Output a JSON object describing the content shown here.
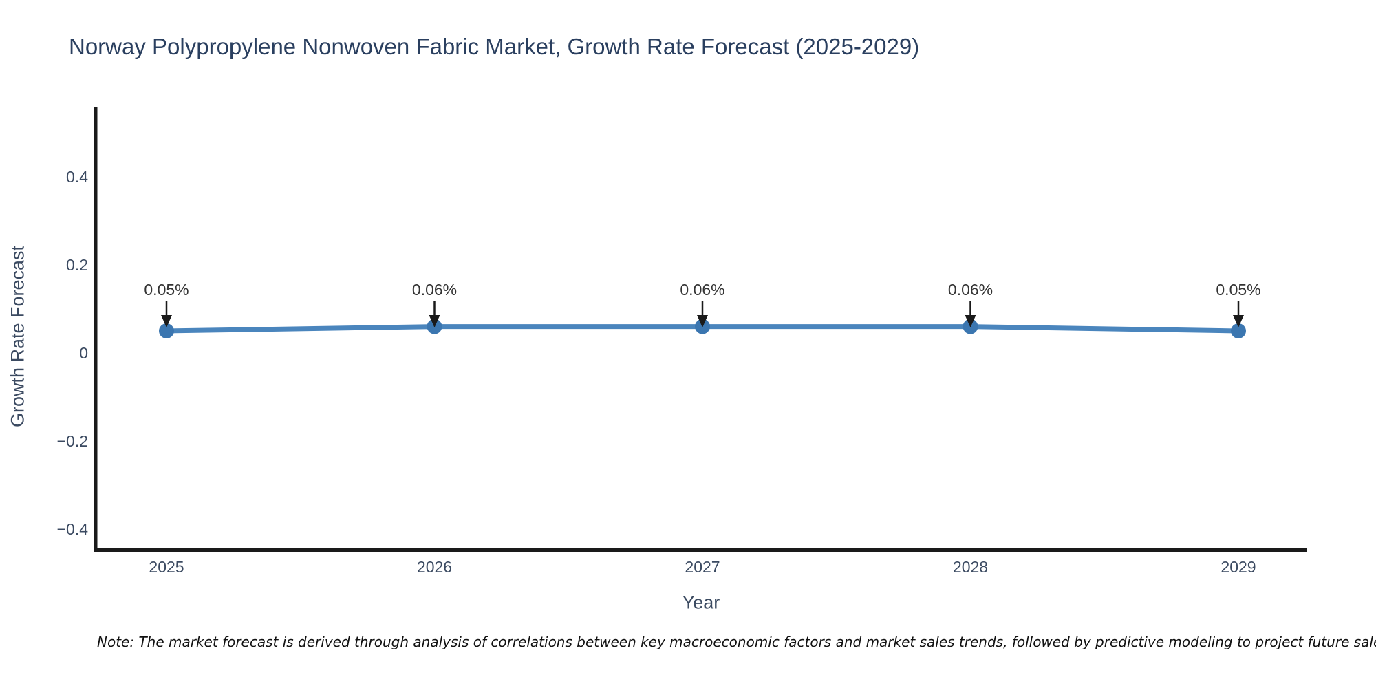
{
  "title": "Norway Polypropylene Nonwoven Fabric Market, Growth Rate Forecast (2025-2029)",
  "note": "Note: The market forecast is derived through analysis of correlations between key macroeconomic factors and market sales trends, followed by predictive modeling to project future sales",
  "chart_data": {
    "type": "line",
    "x": [
      2025,
      2026,
      2027,
      2028,
      2029
    ],
    "x_tick_labels": [
      "2025",
      "2026",
      "2027",
      "2028",
      "2029"
    ],
    "series": [
      {
        "name": "Growth Rate Forecast",
        "values": [
          0.05,
          0.06,
          0.06,
          0.06,
          0.05
        ]
      }
    ],
    "point_labels": [
      "0.05%",
      "0.06%",
      "0.06%",
      "0.06%",
      "0.05%"
    ],
    "xlabel": "Year",
    "ylabel": "Growth Rate Forecast",
    "y_ticks": [
      0.4,
      0.2,
      0,
      -0.2,
      -0.4
    ],
    "y_tick_labels": [
      "0.4",
      "0.2",
      "0",
      "−0.2",
      "−0.4"
    ],
    "ylim": [
      -0.47,
      0.56
    ],
    "grid": false,
    "legend_position": "none",
    "colors": {
      "line": "#4a85bd",
      "marker": "#3b76b0",
      "axis": "#1a1a1a",
      "tick_text": "#3b4a61",
      "title_text": "#2a3f5f",
      "annotation_text": "#333333",
      "arrow": "#1a1a1a",
      "background": "#ffffff"
    }
  }
}
